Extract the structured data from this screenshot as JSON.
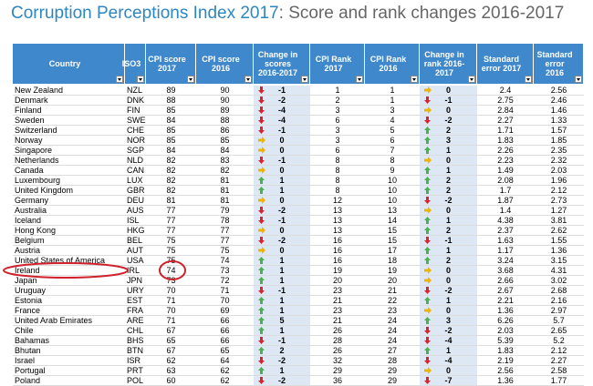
{
  "header": {
    "title_main": "Corruption Perceptions Index 2017",
    "title_rest": ": Score and rank changes 2016-2017"
  },
  "table": {
    "columns": [
      "Country",
      "ISO3",
      "CPI score 2017",
      "CPI score 2016",
      "Change in scores 2016-2017",
      "CPI Rank 2017",
      "CPI Rank 2016",
      "Change in rank 2016-2017",
      "Standard error 2017",
      "Standard error 2016"
    ],
    "rows": [
      [
        "New Zealand",
        "NZL",
        89,
        90,
        -1,
        1,
        1,
        0,
        2.4,
        2.56
      ],
      [
        "Denmark",
        "DNK",
        88,
        90,
        -2,
        2,
        1,
        -1,
        2.75,
        2.46
      ],
      [
        "Finland",
        "FIN",
        85,
        89,
        -4,
        3,
        3,
        0,
        2.84,
        1.46
      ],
      [
        "Sweden",
        "SWE",
        84,
        88,
        -4,
        6,
        4,
        -2,
        2.27,
        1.33
      ],
      [
        "Switzerland",
        "CHE",
        85,
        86,
        -1,
        3,
        5,
        2,
        1.71,
        1.57
      ],
      [
        "Norway",
        "NOR",
        85,
        85,
        0,
        3,
        6,
        3,
        1.83,
        1.85
      ],
      [
        "Singapore",
        "SGP",
        84,
        84,
        0,
        6,
        7,
        1,
        2.26,
        2.35
      ],
      [
        "Netherlands",
        "NLD",
        82,
        83,
        -1,
        8,
        8,
        0,
        2.23,
        2.32
      ],
      [
        "Canada",
        "CAN",
        82,
        82,
        0,
        8,
        9,
        1,
        1.49,
        2.03
      ],
      [
        "Luxembourg",
        "LUX",
        82,
        81,
        1,
        8,
        10,
        2,
        2.08,
        1.96
      ],
      [
        "United Kingdom",
        "GBR",
        82,
        81,
        1,
        8,
        10,
        2,
        1.7,
        2.12
      ],
      [
        "Germany",
        "DEU",
        81,
        81,
        0,
        12,
        10,
        -2,
        1.87,
        2.73
      ],
      [
        "Australia",
        "AUS",
        77,
        79,
        -2,
        13,
        13,
        0,
        1.4,
        1.27
      ],
      [
        "Iceland",
        "ISL",
        77,
        78,
        -1,
        13,
        14,
        1,
        4.38,
        3.81
      ],
      [
        "Hong Kong",
        "HKG",
        77,
        77,
        0,
        13,
        15,
        2,
        2.37,
        2.62
      ],
      [
        "Belgium",
        "BEL",
        75,
        77,
        -2,
        16,
        15,
        -1,
        1.63,
        1.55
      ],
      [
        "Austria",
        "AUT",
        75,
        75,
        0,
        16,
        17,
        1,
        1.17,
        1.36
      ],
      [
        "United States of America",
        "USA",
        75,
        74,
        1,
        16,
        18,
        2,
        3.24,
        3.15
      ],
      [
        "Ireland",
        "IRL",
        74,
        73,
        1,
        19,
        19,
        0,
        3.68,
        4.31
      ],
      [
        "Japan",
        "JPN",
        73,
        72,
        1,
        20,
        20,
        0,
        2.66,
        3.02
      ],
      [
        "Uruguay",
        "URY",
        70,
        71,
        -1,
        23,
        21,
        -2,
        2.67,
        2.68
      ],
      [
        "Estonia",
        "EST",
        71,
        70,
        1,
        21,
        22,
        1,
        2.21,
        2.16
      ],
      [
        "France",
        "FRA",
        70,
        69,
        1,
        23,
        23,
        0,
        1.36,
        2.97
      ],
      [
        "United Arab Emirates",
        "ARE",
        71,
        66,
        5,
        21,
        24,
        3,
        6.26,
        5.7
      ],
      [
        "Chile",
        "CHL",
        67,
        66,
        1,
        26,
        24,
        -2,
        2.03,
        2.65
      ],
      [
        "Bahamas",
        "BHS",
        65,
        66,
        -1,
        28,
        24,
        -4,
        5.39,
        5.2
      ],
      [
        "Bhutan",
        "BTN",
        67,
        65,
        2,
        26,
        27,
        1,
        1.83,
        2.12
      ],
      [
        "Israel",
        "ISR",
        62,
        64,
        -2,
        32,
        28,
        -4,
        2.19,
        2.27
      ],
      [
        "Portugal",
        "PRT",
        63,
        62,
        1,
        29,
        29,
        0,
        2.56,
        2.58
      ],
      [
        "Poland",
        "POL",
        60,
        62,
        -2,
        36,
        29,
        -7,
        1.36,
        1.77
      ]
    ]
  }
}
